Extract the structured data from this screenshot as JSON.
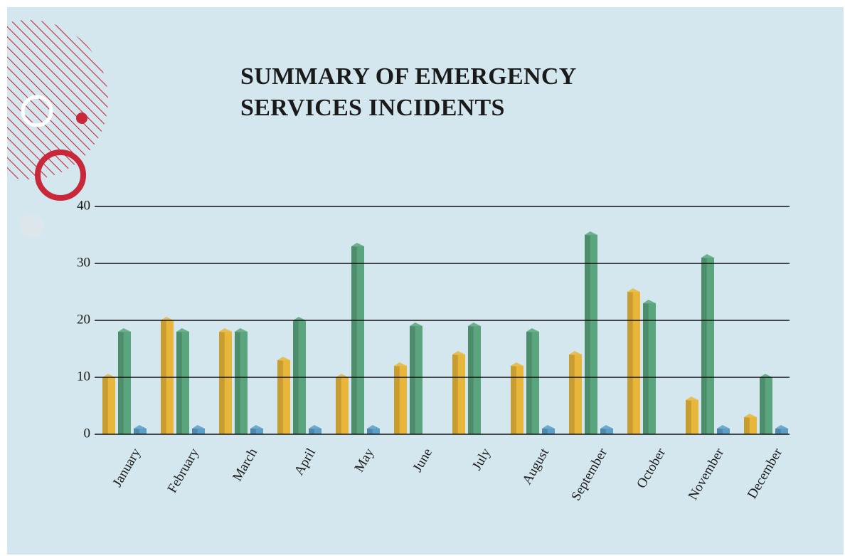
{
  "chart_data": {
    "type": "bar",
    "title": "SUMMARY OF EMERGENCY SERVICES INCIDENTS",
    "categories": [
      "January",
      "February",
      "March",
      "April",
      "May",
      "June",
      "July",
      "August",
      "September",
      "October",
      "November",
      "December"
    ],
    "series": [
      {
        "color": "#e8b63a",
        "values": [
          10,
          20,
          18,
          13,
          10,
          12,
          14,
          12,
          14,
          25,
          6,
          3
        ]
      },
      {
        "color": "#5aa57e",
        "values": [
          18,
          18,
          18,
          20,
          33,
          19,
          19,
          18,
          35,
          23,
          31,
          10
        ]
      },
      {
        "color": "#5b9fc7",
        "values": [
          1,
          1,
          1,
          1,
          1,
          0,
          0,
          1,
          1,
          0,
          1,
          1
        ]
      }
    ],
    "ylim": [
      0,
      40
    ],
    "yticks": [
      0,
      10,
      20,
      30,
      40
    ],
    "grid": true
  }
}
